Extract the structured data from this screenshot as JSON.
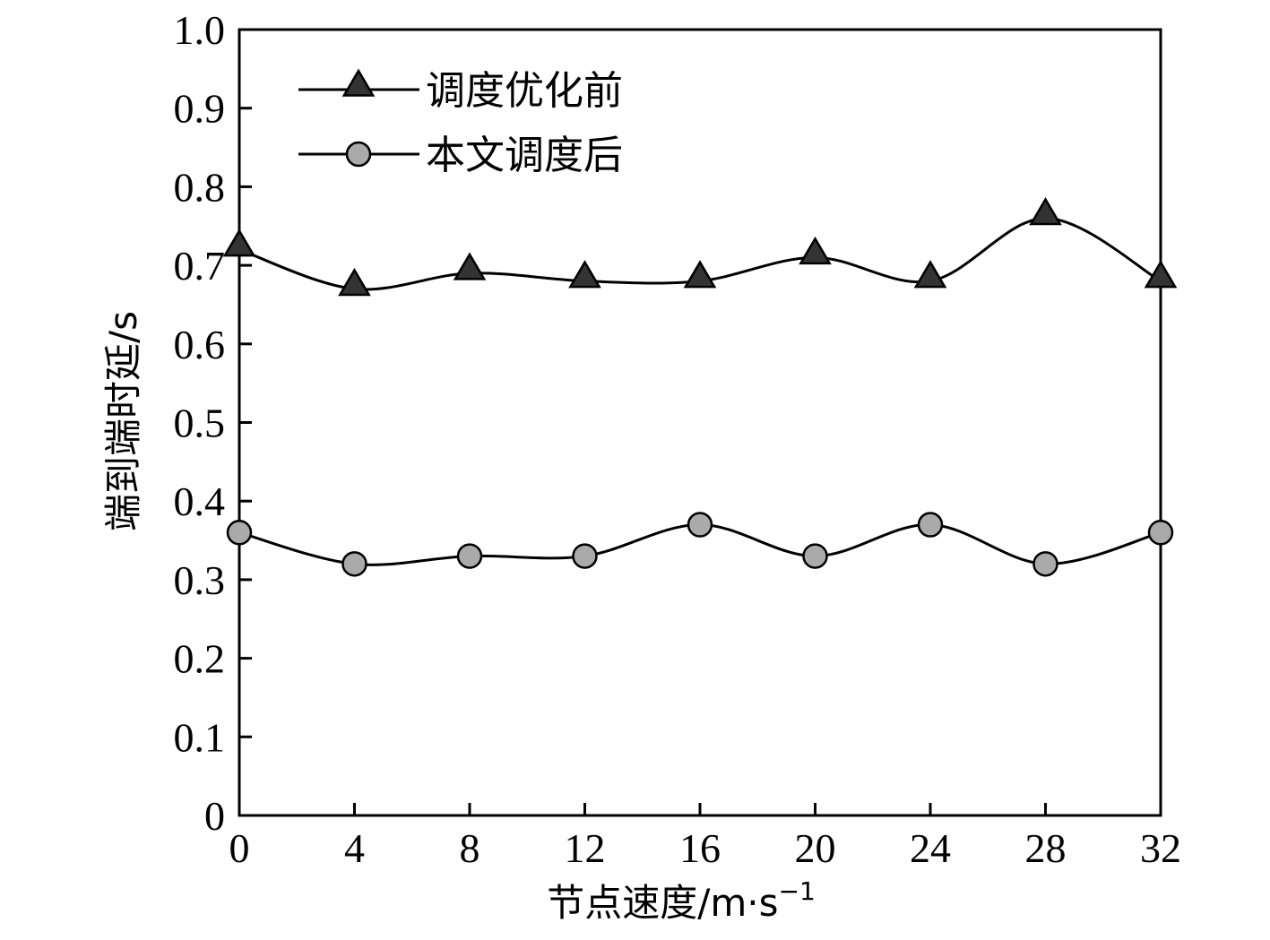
{
  "chart_data": {
    "type": "line",
    "xlabel": "节点速度/m·s",
    "xlabel_superscript": "−1",
    "ylabel": "端到端时延/s",
    "xlim": [
      0,
      32
    ],
    "ylim": [
      0,
      1.0
    ],
    "x_ticks": [
      "0",
      "4",
      "8",
      "12",
      "16",
      "20",
      "24",
      "28",
      "32"
    ],
    "y_ticks": [
      "0",
      "0.1",
      "0.2",
      "0.3",
      "0.4",
      "0.5",
      "0.6",
      "0.7",
      "0.8",
      "0.9",
      "1.0"
    ],
    "x": [
      0,
      4,
      8,
      12,
      16,
      20,
      24,
      28,
      32
    ],
    "series": [
      {
        "name": "调度优化前",
        "marker": "triangle",
        "color": "#333333",
        "values": [
          0.72,
          0.67,
          0.69,
          0.68,
          0.68,
          0.71,
          0.68,
          0.76,
          0.68
        ]
      },
      {
        "name": "本文调度后",
        "marker": "circle",
        "color": "#aaaaaa",
        "values": [
          0.36,
          0.32,
          0.33,
          0.33,
          0.37,
          0.33,
          0.37,
          0.32,
          0.36
        ]
      }
    ],
    "grid": false,
    "legend_position": "top-left"
  }
}
